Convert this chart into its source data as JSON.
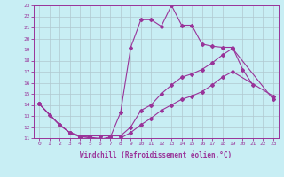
{
  "xlabel": "Windchill (Refroidissement éolien,°C)",
  "background_color": "#c8eef4",
  "grid_color": "#b0c8d0",
  "line_color": "#993399",
  "xlim": [
    -0.5,
    23.5
  ],
  "ylim": [
    11,
    23
  ],
  "line1_x": [
    0,
    1,
    2,
    3,
    4,
    5,
    6,
    7,
    8,
    9,
    10,
    11,
    12,
    13,
    14,
    15,
    16,
    17,
    18,
    19,
    20,
    21
  ],
  "line1_y": [
    14.1,
    13.1,
    12.2,
    11.5,
    11.1,
    11.1,
    10.9,
    11.1,
    13.3,
    19.2,
    21.7,
    21.7,
    21.1,
    23.0,
    21.2,
    21.2,
    19.5,
    19.3,
    19.2,
    19.2,
    17.2,
    15.8
  ],
  "line2_x": [
    0,
    2,
    3,
    4,
    5,
    6,
    7,
    8,
    9,
    10,
    11,
    12,
    13,
    14,
    15,
    16,
    17,
    18,
    19,
    23
  ],
  "line2_y": [
    14.1,
    12.2,
    11.5,
    11.2,
    11.2,
    11.2,
    11.2,
    11.2,
    12.0,
    13.5,
    14.0,
    15.0,
    15.8,
    16.5,
    16.8,
    17.2,
    17.8,
    18.5,
    19.1,
    14.5
  ],
  "line3_x": [
    0,
    2,
    3,
    4,
    5,
    6,
    7,
    8,
    9,
    10,
    11,
    12,
    13,
    14,
    15,
    16,
    17,
    18,
    19,
    23
  ],
  "line3_y": [
    14.1,
    12.2,
    11.5,
    11.2,
    11.0,
    11.0,
    10.8,
    11.0,
    11.5,
    12.2,
    12.8,
    13.5,
    14.0,
    14.5,
    14.8,
    15.2,
    15.8,
    16.5,
    17.0,
    14.8
  ]
}
